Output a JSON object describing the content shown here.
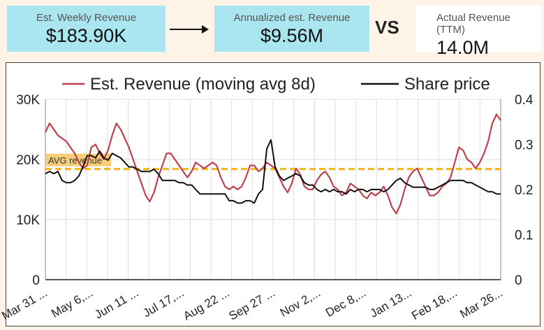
{
  "kpis": {
    "weekly": {
      "label": "Est. Weekly Revenue",
      "value": "$183.90K"
    },
    "annual": {
      "label": "Annualized est. Revenue",
      "value": "$9.56M"
    },
    "vs": "VS",
    "actual": {
      "label": "Actual Revenue (TTM)",
      "value": "14.0M"
    }
  },
  "colors": {
    "revenue": "#c0404c",
    "price": "#111111",
    "avg": "#f5b400"
  },
  "chart_data": {
    "type": "line",
    "legend": {
      "placement": "top",
      "revenue": "Est. Revenue (moving avg 8d)",
      "price": "Share price"
    },
    "x_ticks": [
      "Mar 31 ...",
      "May 6,...",
      "Jun 11 ...",
      "Jul 17,...",
      "Aug 22 ...",
      "Sep 27 ...",
      "Nov 2,...",
      "Dec 8,...",
      "Jan 13...",
      "Feb 18,...",
      "Mar 26..."
    ],
    "y_left": {
      "ticks": [
        "0",
        "10K",
        "20K",
        "30K"
      ],
      "min": 0,
      "max": 30000
    },
    "y_right": {
      "ticks": [
        "0",
        "0.1",
        "0.2",
        "0.3",
        "0.4"
      ],
      "min": 0,
      "max": 0.4
    },
    "avg_label": "AVG revenue",
    "avg_value": 18400,
    "grid": true,
    "series": [
      {
        "name": "Est. Revenue (moving avg 8d)",
        "axis": "left",
        "points": [
          [
            0,
            24500
          ],
          [
            1,
            26000
          ],
          [
            2,
            25000
          ],
          [
            3,
            24000
          ],
          [
            4,
            23500
          ],
          [
            5,
            23000
          ],
          [
            6,
            22000
          ],
          [
            7,
            21000
          ],
          [
            8,
            19500
          ],
          [
            9,
            18500
          ],
          [
            10,
            19000
          ],
          [
            11,
            22000
          ],
          [
            12,
            22500
          ],
          [
            13,
            21000
          ],
          [
            14,
            20000
          ],
          [
            15,
            21500
          ],
          [
            16,
            24000
          ],
          [
            17,
            26000
          ],
          [
            18,
            25000
          ],
          [
            19,
            23500
          ],
          [
            20,
            22000
          ],
          [
            21,
            20000
          ],
          [
            22,
            18000
          ],
          [
            23,
            16000
          ],
          [
            24,
            14000
          ],
          [
            25,
            13000
          ],
          [
            26,
            14500
          ],
          [
            27,
            17000
          ],
          [
            28,
            19000
          ],
          [
            29,
            21000
          ],
          [
            30,
            21000
          ],
          [
            31,
            20000
          ],
          [
            32,
            19000
          ],
          [
            33,
            18000
          ],
          [
            34,
            17000
          ],
          [
            35,
            18000
          ],
          [
            36,
            19500
          ],
          [
            37,
            19000
          ],
          [
            38,
            18500
          ],
          [
            39,
            19000
          ],
          [
            40,
            19500
          ],
          [
            41,
            19000
          ],
          [
            42,
            17000
          ],
          [
            43,
            15500
          ],
          [
            44,
            15000
          ],
          [
            45,
            15500
          ],
          [
            46,
            15000
          ],
          [
            47,
            15500
          ],
          [
            48,
            17000
          ],
          [
            49,
            19000
          ],
          [
            50,
            19000
          ],
          [
            51,
            18000
          ],
          [
            52,
            18500
          ],
          [
            53,
            19500
          ],
          [
            54,
            19000
          ],
          [
            55,
            18500
          ],
          [
            56,
            17000
          ],
          [
            57,
            15500
          ],
          [
            58,
            14500
          ],
          [
            59,
            16000
          ],
          [
            60,
            18500
          ],
          [
            61,
            17500
          ],
          [
            62,
            15500
          ],
          [
            63,
            15000
          ],
          [
            64,
            15000
          ],
          [
            65,
            16500
          ],
          [
            66,
            17500
          ],
          [
            67,
            18000
          ],
          [
            68,
            17000
          ],
          [
            69,
            15500
          ],
          [
            70,
            15000
          ],
          [
            71,
            14000
          ],
          [
            72,
            14500
          ],
          [
            73,
            16000
          ],
          [
            74,
            15500
          ],
          [
            75,
            15000
          ],
          [
            76,
            14000
          ],
          [
            77,
            13500
          ],
          [
            78,
            14500
          ],
          [
            79,
            14000
          ],
          [
            80,
            14500
          ],
          [
            81,
            15500
          ],
          [
            82,
            14000
          ],
          [
            83,
            12000
          ],
          [
            84,
            11000
          ],
          [
            85,
            12500
          ],
          [
            86,
            15000
          ],
          [
            87,
            17000
          ],
          [
            88,
            18000
          ],
          [
            89,
            18500
          ],
          [
            90,
            17000
          ],
          [
            91,
            15500
          ],
          [
            92,
            14000
          ],
          [
            93,
            14000
          ],
          [
            94,
            14500
          ],
          [
            95,
            15500
          ],
          [
            96,
            16000
          ],
          [
            97,
            17000
          ],
          [
            98,
            19500
          ],
          [
            99,
            22000
          ],
          [
            100,
            21500
          ],
          [
            101,
            20000
          ],
          [
            102,
            19500
          ],
          [
            103,
            18500
          ],
          [
            104,
            19500
          ],
          [
            105,
            21000
          ],
          [
            106,
            23000
          ],
          [
            107,
            26000
          ],
          [
            108,
            27500
          ],
          [
            109,
            26500
          ]
        ]
      },
      {
        "name": "Share price",
        "axis": "right",
        "points": [
          [
            0,
            0.235
          ],
          [
            1,
            0.24
          ],
          [
            2,
            0.235
          ],
          [
            3,
            0.24
          ],
          [
            4,
            0.22
          ],
          [
            5,
            0.215
          ],
          [
            6,
            0.215
          ],
          [
            7,
            0.22
          ],
          [
            8,
            0.23
          ],
          [
            9,
            0.25
          ],
          [
            10,
            0.275
          ],
          [
            11,
            0.275
          ],
          [
            12,
            0.27
          ],
          [
            13,
            0.285
          ],
          [
            14,
            0.27
          ],
          [
            15,
            0.265
          ],
          [
            16,
            0.28
          ],
          [
            17,
            0.275
          ],
          [
            18,
            0.27
          ],
          [
            19,
            0.26
          ],
          [
            20,
            0.25
          ],
          [
            21,
            0.25
          ],
          [
            22,
            0.245
          ],
          [
            23,
            0.24
          ],
          [
            24,
            0.24
          ],
          [
            25,
            0.24
          ],
          [
            26,
            0.245
          ],
          [
            27,
            0.235
          ],
          [
            28,
            0.22
          ],
          [
            29,
            0.22
          ],
          [
            30,
            0.22
          ],
          [
            31,
            0.22
          ],
          [
            32,
            0.215
          ],
          [
            33,
            0.215
          ],
          [
            34,
            0.21
          ],
          [
            35,
            0.21
          ],
          [
            36,
            0.2
          ],
          [
            37,
            0.19
          ],
          [
            38,
            0.19
          ],
          [
            39,
            0.19
          ],
          [
            40,
            0.19
          ],
          [
            41,
            0.19
          ],
          [
            42,
            0.19
          ],
          [
            43,
            0.19
          ],
          [
            44,
            0.175
          ],
          [
            45,
            0.175
          ],
          [
            46,
            0.17
          ],
          [
            47,
            0.17
          ],
          [
            48,
            0.175
          ],
          [
            49,
            0.175
          ],
          [
            50,
            0.17
          ],
          [
            51,
            0.19
          ],
          [
            52,
            0.2
          ],
          [
            53,
            0.29
          ],
          [
            54,
            0.31
          ],
          [
            55,
            0.25
          ],
          [
            56,
            0.23
          ],
          [
            57,
            0.22
          ],
          [
            58,
            0.225
          ],
          [
            59,
            0.23
          ],
          [
            60,
            0.235
          ],
          [
            61,
            0.23
          ],
          [
            62,
            0.215
          ],
          [
            63,
            0.21
          ],
          [
            64,
            0.21
          ],
          [
            65,
            0.2
          ],
          [
            66,
            0.195
          ],
          [
            67,
            0.2
          ],
          [
            68,
            0.195
          ],
          [
            69,
            0.2
          ],
          [
            70,
            0.195
          ],
          [
            71,
            0.195
          ],
          [
            72,
            0.19
          ],
          [
            73,
            0.2
          ],
          [
            74,
            0.195
          ],
          [
            75,
            0.2
          ],
          [
            76,
            0.2
          ],
          [
            77,
            0.195
          ],
          [
            78,
            0.2
          ],
          [
            79,
            0.2
          ],
          [
            80,
            0.2
          ],
          [
            81,
            0.195
          ],
          [
            82,
            0.2
          ],
          [
            83,
            0.21
          ],
          [
            84,
            0.22
          ],
          [
            85,
            0.225
          ],
          [
            86,
            0.215
          ],
          [
            87,
            0.21
          ],
          [
            88,
            0.205
          ],
          [
            89,
            0.205
          ],
          [
            90,
            0.205
          ],
          [
            91,
            0.205
          ],
          [
            92,
            0.2
          ],
          [
            93,
            0.2
          ],
          [
            94,
            0.205
          ],
          [
            95,
            0.21
          ],
          [
            96,
            0.215
          ],
          [
            97,
            0.22
          ],
          [
            98,
            0.22
          ],
          [
            99,
            0.22
          ],
          [
            100,
            0.22
          ],
          [
            101,
            0.215
          ],
          [
            102,
            0.215
          ],
          [
            103,
            0.21
          ],
          [
            104,
            0.205
          ],
          [
            105,
            0.2
          ],
          [
            106,
            0.195
          ],
          [
            107,
            0.195
          ],
          [
            108,
            0.19
          ],
          [
            109,
            0.19
          ]
        ]
      }
    ]
  }
}
